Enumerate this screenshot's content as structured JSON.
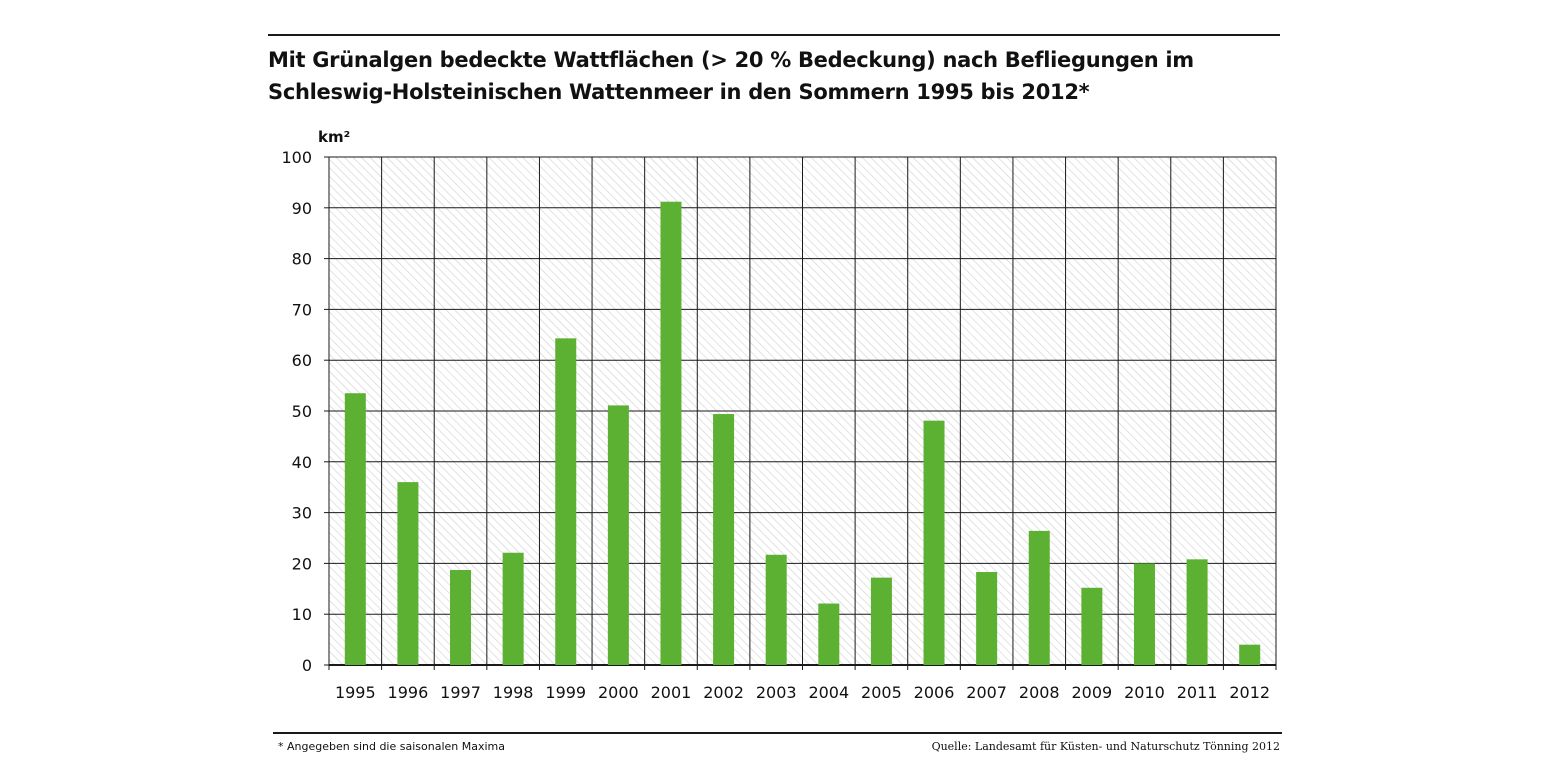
{
  "colors": {
    "bar": "#5cb032",
    "grid": "#1a1a1a",
    "hatch": "#d0d0d0",
    "text": "#111111"
  },
  "figure": {
    "title_line1": "Mit Grünalgen bedeckte Wattflächen (> 20 % Bedeckung) nach Befliegungen im",
    "title_line2": "Schleswig-Holsteinischen Wattenmeer in den Sommern 1995 bis 2012*",
    "footnote": "* Angegeben sind die saisonalen Maxima",
    "source": "Quelle: Landesamt für Küsten- und Naturschutz Tönning 2012"
  },
  "chart_data": {
    "type": "bar",
    "title": "Mit Grünalgen bedeckte Wattflächen (> 20 % Bedeckung) nach Befliegungen im Schleswig-Holsteinischen Wattenmeer in den Sommern 1995 bis 2012*",
    "ylabel": "km²",
    "xlabel": "",
    "ylim": [
      0,
      100
    ],
    "yticks": [
      0,
      10,
      20,
      30,
      40,
      50,
      60,
      70,
      80,
      90,
      100
    ],
    "grid": true,
    "categories": [
      "1995",
      "1996",
      "1997",
      "1998",
      "1999",
      "2000",
      "2001",
      "2002",
      "2003",
      "2004",
      "2005",
      "2006",
      "2007",
      "2008",
      "2009",
      "2010",
      "2011",
      "2012"
    ],
    "values": [
      53.5,
      36,
      18.7,
      22.1,
      64.3,
      51.1,
      91.2,
      49.4,
      21.7,
      12.1,
      17.2,
      48.1,
      18.3,
      26.4,
      15.2,
      20,
      20.8,
      4
    ]
  }
}
